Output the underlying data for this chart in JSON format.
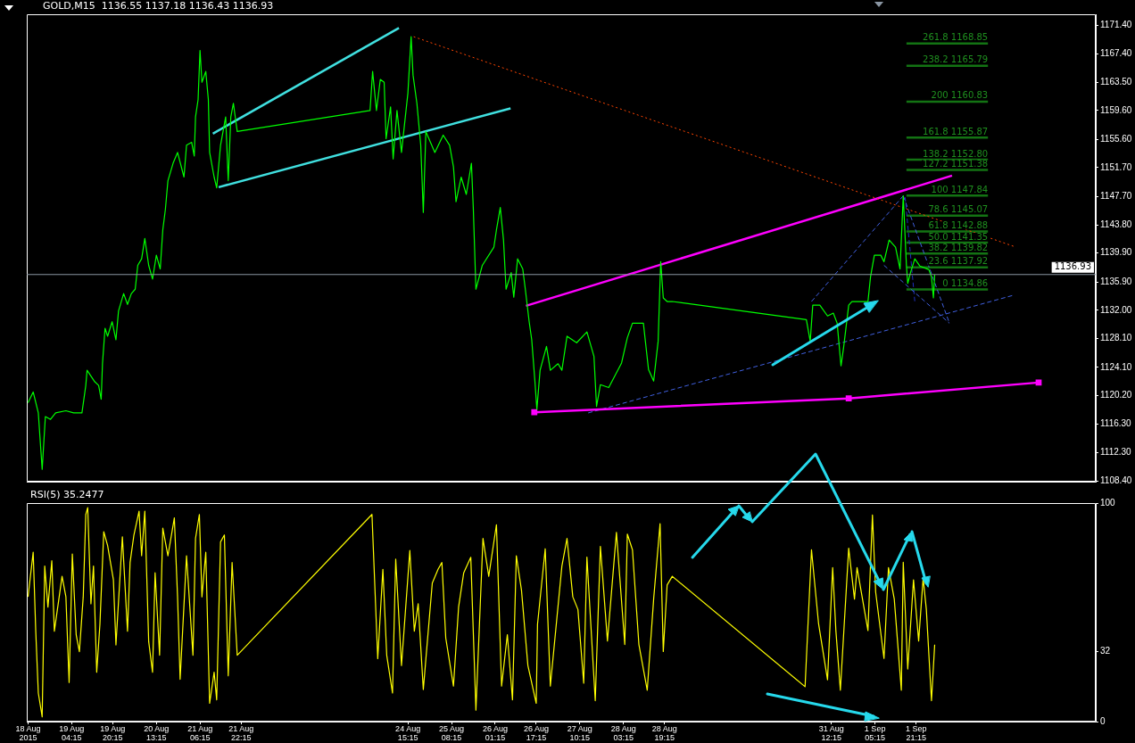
{
  "chart_data": [
    {
      "type": "line",
      "title": "GOLD,M15  1136.55 1137.18 1136.43 1136.93",
      "xlim": [
        "2015-08-18T10:45",
        "2015-09-04T19:15"
      ],
      "ylim": [
        1108.3,
        1172.9
      ],
      "tick_labels": "y",
      "legend": false,
      "marker": "none",
      "yticks": [
        {
          "value": 1108.4,
          "label": "1108.40"
        },
        {
          "value": 1112.3,
          "label": "1112.30"
        },
        {
          "value": 1116.3,
          "label": "1116.30"
        },
        {
          "value": 1120.2,
          "label": "1120.20"
        },
        {
          "value": 1124.1,
          "label": "1124.10"
        },
        {
          "value": 1128.1,
          "label": "1128.10"
        },
        {
          "value": 1132.0,
          "label": "1132.00"
        },
        {
          "value": 1135.9,
          "label": "1135.90"
        },
        {
          "value": 1139.9,
          "label": "1139.90"
        },
        {
          "value": 1143.8,
          "label": "1143.80"
        },
        {
          "value": 1147.7,
          "label": "1147.70"
        },
        {
          "value": 1151.7,
          "label": "1151.70"
        },
        {
          "value": 1155.6,
          "label": "1155.60"
        },
        {
          "value": 1159.6,
          "label": "1159.60"
        },
        {
          "value": 1163.5,
          "label": "1163.50"
        },
        {
          "value": 1167.4,
          "label": "1167.40"
        },
        {
          "value": 1171.4,
          "label": "1171.40"
        }
      ],
      "ref_lines": [
        {
          "axis": "y",
          "value": 1136.93,
          "label": "1136.93",
          "color": "#8a96a3"
        }
      ],
      "series": [
        {
          "color": "#00ff00",
          "x": [
            "2015-08-18T11:15",
            "2015-08-18T13:15",
            "2015-08-18T15:15",
            "2015-08-18T16:45",
            "2015-08-18T18:00",
            "2015-08-18T20:00",
            "2015-08-18T22:00",
            "2015-08-19T02:00",
            "2015-08-19T05:00",
            "2015-08-19T08:15",
            "2015-08-19T09:45",
            "2015-08-19T10:15",
            "2015-08-19T13:15",
            "2015-08-19T14:45",
            "2015-08-19T15:45",
            "2015-08-19T16:15",
            "2015-08-19T17:15",
            "2015-08-19T18:15",
            "2015-08-19T20:00",
            "2015-08-19T21:30",
            "2015-08-19T22:30",
            "2015-08-20T00:30",
            "2015-08-20T02:00",
            "2015-08-20T03:30",
            "2015-08-20T05:00",
            "2015-08-20T06:00",
            "2015-08-20T07:30",
            "2015-08-20T08:45",
            "2015-08-20T10:15",
            "2015-08-20T11:45",
            "2015-08-20T13:15",
            "2015-08-20T14:45",
            "2015-08-20T15:45",
            "2015-08-20T16:45",
            "2015-08-20T17:45",
            "2015-08-20T19:45",
            "2015-08-20T21:30",
            "2015-08-21T00:00",
            "2015-08-21T01:00",
            "2015-08-21T03:00",
            "2015-08-21T04:00",
            "2015-08-21T04:30",
            "2015-08-21T05:30",
            "2015-08-21T06:15",
            "2015-08-21T07:00",
            "2015-08-21T08:30",
            "2015-08-21T09:30",
            "2015-08-21T10:00",
            "2015-08-21T11:45",
            "2015-08-21T12:45",
            "2015-08-21T14:15",
            "2015-08-21T16:15",
            "2015-08-21T17:15",
            "2015-08-21T18:15",
            "2015-08-21T19:15",
            "2015-08-21T20:45",
            "2015-08-24T00:30",
            "2015-08-24T01:30",
            "2015-08-24T03:00",
            "2015-08-24T04:30",
            "2015-08-24T06:00",
            "2015-08-24T06:45",
            "2015-08-24T08:30",
            "2015-08-24T09:30",
            "2015-08-24T11:00",
            "2015-08-24T12:45",
            "2015-08-24T15:15",
            "2015-08-24T16:30",
            "2015-08-24T17:15",
            "2015-08-24T18:45",
            "2015-08-24T20:15",
            "2015-08-24T21:15",
            "2015-08-24T22:15",
            "2015-08-25T01:45",
            "2015-08-25T05:00",
            "2015-08-25T07:30",
            "2015-08-25T09:00",
            "2015-08-25T10:00",
            "2015-08-25T12:00",
            "2015-08-25T14:00",
            "2015-08-25T16:00",
            "2015-08-25T16:45",
            "2015-08-25T17:45",
            "2015-08-25T20:15",
            "2015-08-26T00:45",
            "2015-08-26T01:45",
            "2015-08-26T03:15",
            "2015-08-26T04:30",
            "2015-08-26T05:30",
            "2015-08-26T07:30",
            "2015-08-26T08:30",
            "2015-08-26T10:00",
            "2015-08-26T12:00",
            "2015-08-26T13:00",
            "2015-08-26T14:30",
            "2015-08-26T15:30",
            "2015-08-26T16:45",
            "2015-08-26T17:30",
            "2015-08-26T18:45",
            "2015-08-26T21:15",
            "2015-08-26T22:45",
            "2015-08-27T01:45",
            "2015-08-27T03:15",
            "2015-08-27T05:15",
            "2015-08-27T09:00",
            "2015-08-27T13:00",
            "2015-08-27T15:45",
            "2015-08-27T16:45",
            "2015-08-27T18:15",
            "2015-08-27T21:30",
            "2015-08-28T02:30",
            "2015-08-28T04:45",
            "2015-08-28T06:45",
            "2015-08-28T11:00",
            "2015-08-28T13:00",
            "2015-08-28T15:00",
            "2015-08-28T16:45",
            "2015-08-28T17:45",
            "2015-08-28T18:45",
            "2015-08-28T20:15",
            "2015-08-28T22:15",
            "2015-08-31T02:30",
            "2015-08-31T04:00",
            "2015-08-31T05:00",
            "2015-08-31T07:45",
            "2015-08-31T10:45",
            "2015-08-31T13:00",
            "2015-08-31T14:30",
            "2015-08-31T16:00",
            "2015-08-31T17:00",
            "2015-08-31T19:00",
            "2015-08-31T20:15",
            "2015-09-01T00:15",
            "2015-09-01T02:30",
            "2015-09-01T03:30",
            "2015-09-01T05:00",
            "2015-09-01T07:30",
            "2015-09-01T08:45",
            "2015-09-01T10:45",
            "2015-09-01T13:15",
            "2015-09-01T15:00",
            "2015-09-01T16:15",
            "2015-09-01T17:30",
            "2015-09-01T18:00",
            "2015-09-01T19:00",
            "2015-09-01T20:45",
            "2015-09-01T22:45",
            "2015-09-02T02:15",
            "2015-09-02T03:15",
            "2015-09-02T04:00",
            "2015-09-02T04:30"
          ],
          "values": [
            1119.2,
            1120.7,
            1117.8,
            1110.0,
            1117.3,
            1116.9,
            1117.8,
            1118.1,
            1117.8,
            1117.8,
            1121.6,
            1123.7,
            1122.1,
            1121.6,
            1119.7,
            1124.6,
            1129.5,
            1128.4,
            1130.4,
            1127.9,
            1131.9,
            1134.3,
            1132.8,
            1134.3,
            1134.9,
            1138.2,
            1139.1,
            1141.9,
            1138.2,
            1136.3,
            1139.6,
            1137.7,
            1143.1,
            1145.9,
            1149.9,
            1152.3,
            1153.8,
            1150.4,
            1154.8,
            1155.2,
            1153.3,
            1158.7,
            1161.1,
            1167.9,
            1163.5,
            1165.0,
            1161.1,
            1153.8,
            1150.4,
            1148.9,
            1154.8,
            1158.7,
            1149.9,
            1158.7,
            1160.6,
            1156.7,
            1159.6,
            1165.0,
            1159.6,
            1163.9,
            1163.5,
            1155.7,
            1160.1,
            1152.9,
            1159.6,
            1153.8,
            1162.0,
            1169.8,
            1164.5,
            1160.6,
            1154.8,
            1145.5,
            1156.7,
            1153.8,
            1156.2,
            1154.8,
            1151.8,
            1147.0,
            1150.4,
            1148.0,
            1152.3,
            1145.9,
            1134.9,
            1138.2,
            1140.7,
            1143.1,
            1146.2,
            1141.7,
            1134.9,
            1137.2,
            1133.8,
            1139.1,
            1137.7,
            1134.9,
            1130.4,
            1127.9,
            1122.1,
            1118.3,
            1123.7,
            1127.0,
            1123.7,
            1124.6,
            1123.7,
            1128.4,
            1127.5,
            1129.0,
            1125.6,
            1118.7,
            1121.7,
            1121.3,
            1124.7,
            1128.2,
            1130.2,
            1130.2,
            1123.8,
            1122.2,
            1127.7,
            1138.7,
            1133.7,
            1133.2,
            1133.2,
            1130.7,
            1127.7,
            1132.7,
            1132.7,
            1131.2,
            1131.6,
            1130.2,
            1124.3,
            1126.8,
            1132.7,
            1133.2,
            1133.2,
            1133.2,
            1136.6,
            1139.6,
            1139.6,
            1138.7,
            1141.7,
            1140.7,
            1137.7,
            1147.8,
            1138.1,
            1135.7,
            1137.1,
            1139.1,
            1138.1,
            1137.6,
            1136.6,
            1133.7,
            1136.9
          ]
        },
        {
          "color": "#40e0e0",
          "x": [
            "2015-08-21T11:15",
            "2015-08-24T11:45"
          ],
          "values": [
            1156.4,
            1171.0
          ]
        },
        {
          "color": "#40e0e0",
          "x": [
            "2015-08-21T13:30",
            "2015-08-26T07:15"
          ],
          "values": [
            1149.0,
            1159.9
          ]
        },
        {
          "color": "#ff4500",
          "line_style": "dotted",
          "x": [
            "2015-08-24T17:30",
            "2015-09-03T11:30"
          ],
          "values": [
            1169.8,
            1140.8
          ]
        },
        {
          "color": "#ff00ff",
          "x": [
            "2015-08-26T13:15",
            "2015-09-02T11:15"
          ],
          "values": [
            1132.6,
            1150.6
          ]
        },
        {
          "color": "#ff00ff",
          "marker": "square",
          "x": [
            "2015-08-26T16:30",
            "2015-08-31T19:00",
            "2015-09-03T21:00"
          ],
          "values": [
            1117.9,
            1119.8,
            1122.0
          ]
        },
        {
          "color": "#4060e0",
          "line_style": "dashed",
          "x": [
            "2015-08-27T13:30",
            "2015-09-03T11:30"
          ],
          "values": [
            1117.8,
            1134.1
          ]
        },
        {
          "color": "#4060e0",
          "line_style": "dashed",
          "x": [
            "2015-08-31T04:30",
            "2015-09-01T16:15"
          ],
          "values": [
            1133.2,
            1147.8
          ]
        },
        {
          "color": "#4060e0",
          "line_style": "dashed",
          "x": [
            "2015-09-01T16:15",
            "2015-09-02T10:15"
          ],
          "values": [
            1147.8,
            1130.2
          ]
        },
        {
          "color": "#4060e0",
          "line_style": "dashed",
          "x": [
            "2015-09-01T08:45",
            "2015-09-02T10:15"
          ],
          "values": [
            1138.2,
            1130.2
          ]
        },
        {
          "color": "#2030c0",
          "line_style": "dashed",
          "x": [
            "2015-09-01T17:00",
            "2015-09-01T20:45"
          ],
          "values": [
            1147.6,
            1133.2
          ]
        },
        {
          "color": "#137313",
          "x": [
            "2015-09-01T17:30",
            "2015-09-03T01:15"
          ],
          "values": [
            1168.85,
            1168.85
          ]
        },
        {
          "color": "#137313",
          "x": [
            "2015-09-01T17:30",
            "2015-09-03T01:15"
          ],
          "values": [
            1165.79,
            1165.79
          ]
        },
        {
          "color": "#137313",
          "x": [
            "2015-09-01T17:30",
            "2015-09-03T01:15"
          ],
          "values": [
            1160.83,
            1160.83
          ]
        },
        {
          "color": "#137313",
          "x": [
            "2015-09-01T17:30",
            "2015-09-03T01:15"
          ],
          "values": [
            1155.87,
            1155.87
          ]
        },
        {
          "color": "#137313",
          "x": [
            "2015-09-01T17:30",
            "2015-09-03T01:15"
          ],
          "values": [
            1152.8,
            1152.8
          ]
        },
        {
          "color": "#137313",
          "x": [
            "2015-09-01T17:30",
            "2015-09-03T01:15"
          ],
          "values": [
            1151.38,
            1151.38
          ]
        },
        {
          "color": "#137313",
          "x": [
            "2015-09-01T17:30",
            "2015-09-03T01:15"
          ],
          "values": [
            1147.84,
            1147.84
          ]
        },
        {
          "color": "#137313",
          "x": [
            "2015-09-01T17:30",
            "2015-09-03T01:15"
          ],
          "values": [
            1145.07,
            1145.07
          ]
        },
        {
          "color": "#137313",
          "x": [
            "2015-09-01T17:30",
            "2015-09-03T01:15"
          ],
          "values": [
            1142.88,
            1142.88
          ]
        },
        {
          "color": "#137313",
          "x": [
            "2015-09-01T17:30",
            "2015-09-03T01:15"
          ],
          "values": [
            1141.35,
            1141.35
          ]
        },
        {
          "color": "#137313",
          "x": [
            "2015-09-01T17:30",
            "2015-09-03T01:15"
          ],
          "values": [
            1139.82,
            1139.82
          ]
        },
        {
          "color": "#137313",
          "x": [
            "2015-09-01T17:30",
            "2015-09-03T01:15"
          ],
          "values": [
            1137.92,
            1137.92
          ]
        },
        {
          "color": "#137313",
          "x": [
            "2015-09-01T17:30",
            "2015-09-03T01:15"
          ],
          "values": [
            1134.86,
            1134.86
          ]
        }
      ],
      "annotations": [
        {
          "text": "261.8 1168.85",
          "x": "2015-09-03T01:15",
          "y": 1168.85
        },
        {
          "text": "238.2 1165.79",
          "x": "2015-09-03T01:15",
          "y": 1165.79
        },
        {
          "text": "200 1160.83",
          "x": "2015-09-03T01:15",
          "y": 1160.83
        },
        {
          "text": "161.8 1155.87",
          "x": "2015-09-03T01:15",
          "y": 1155.87
        },
        {
          "text": "138.2 1152.80",
          "x": "2015-09-03T01:15",
          "y": 1152.8
        },
        {
          "text": "127.2 1151.38",
          "x": "2015-09-03T01:15",
          "y": 1151.38
        },
        {
          "text": "100 1147.84",
          "x": "2015-09-03T01:15",
          "y": 1147.84
        },
        {
          "text": "78.6 1145.07",
          "x": "2015-09-03T01:15",
          "y": 1145.07
        },
        {
          "text": "61.8 1142.88",
          "x": "2015-09-03T01:15",
          "y": 1142.88
        },
        {
          "text": "50.0 1141.35",
          "x": "2015-09-03T01:15",
          "y": 1141.35
        },
        {
          "text": "38.2 1139.82",
          "x": "2015-09-03T01:15",
          "y": 1139.82
        },
        {
          "text": "23.6 1137.92",
          "x": "2015-09-03T01:15",
          "y": 1137.92
        },
        {
          "text": "0 1134.86",
          "x": "2015-09-03T01:15",
          "y": 1134.86
        }
      ]
    },
    {
      "type": "line",
      "title": "RSI(5) 35.2477",
      "xlim": [
        "2015-08-18T10:45",
        "2015-09-04T19:15"
      ],
      "ylim": [
        0,
        100
      ],
      "yticks": [
        0,
        32,
        100
      ],
      "legend": false,
      "marker": "none",
      "xticks": [
        {
          "value": "2015-08-18T11:15",
          "label": "18 Aug 2015"
        },
        {
          "value": "2015-08-19T04:15",
          "label": "19 Aug 04:15"
        },
        {
          "value": "2015-08-19T20:15",
          "label": "19 Aug 20:15"
        },
        {
          "value": "2015-08-20T13:15",
          "label": "20 Aug 13:15"
        },
        {
          "value": "2015-08-21T06:15",
          "label": "21 Aug 06:15"
        },
        {
          "value": "2015-08-21T22:15",
          "label": "21 Aug 22:15"
        },
        {
          "value": "2015-08-24T15:15",
          "label": "24 Aug 15:15"
        },
        {
          "value": "2015-08-25T08:15",
          "label": "25 Aug 08:15"
        },
        {
          "value": "2015-08-26T01:15",
          "label": "26 Aug 01:15"
        },
        {
          "value": "2015-08-26T17:15",
          "label": "26 Aug 17:15"
        },
        {
          "value": "2015-08-27T10:15",
          "label": "27 Aug 10:15"
        },
        {
          "value": "2015-08-28T03:15",
          "label": "28 Aug 03:15"
        },
        {
          "value": "2015-08-28T19:15",
          "label": "28 Aug 19:15"
        },
        {
          "value": "2015-08-31T12:15",
          "label": "31 Aug 12:15"
        },
        {
          "value": "2015-09-01T05:15",
          "label": "1 Sep 05:15"
        },
        {
          "value": "2015-09-01T21:15",
          "label": "1 Sep 21:15"
        }
      ],
      "series": [
        {
          "color": "#ffff00",
          "x": [
            "2015-08-18T11:15",
            "2015-08-18T13:15",
            "2015-08-18T14:15",
            "2015-08-18T15:15",
            "2015-08-18T16:45",
            "2015-08-18T17:45",
            "2015-08-18T19:00",
            "2015-08-18T20:30",
            "2015-08-18T21:30",
            "2015-08-19T00:30",
            "2015-08-19T02:00",
            "2015-08-19T03:15",
            "2015-08-19T04:30",
            "2015-08-19T06:00",
            "2015-08-19T07:15",
            "2015-08-19T08:45",
            "2015-08-19T09:45",
            "2015-08-19T10:30",
            "2015-08-19T11:45",
            "2015-08-19T12:45",
            "2015-08-19T14:00",
            "2015-08-19T15:15",
            "2015-08-19T16:45",
            "2015-08-19T18:15",
            "2015-08-19T20:30",
            "2015-08-19T21:30",
            "2015-08-20T00:00",
            "2015-08-20T02:00",
            "2015-08-20T03:00",
            "2015-08-20T04:30",
            "2015-08-20T06:30",
            "2015-08-20T07:30",
            "2015-08-20T08:45",
            "2015-08-20T10:15",
            "2015-08-20T11:45",
            "2015-08-20T12:45",
            "2015-08-20T14:30",
            "2015-08-20T15:45",
            "2015-08-20T17:45",
            "2015-08-20T20:15",
            "2015-08-20T21:30",
            "2015-08-20T22:30",
            "2015-08-21T01:00",
            "2015-08-21T03:30",
            "2015-08-21T04:30",
            "2015-08-21T06:00",
            "2015-08-21T07:00",
            "2015-08-21T08:30",
            "2015-08-21T10:00",
            "2015-08-21T11:45",
            "2015-08-21T12:45",
            "2015-08-21T14:15",
            "2015-08-21T15:45",
            "2015-08-21T17:15",
            "2015-08-21T18:45",
            "2015-08-21T20:45",
            "2015-08-24T01:15",
            "2015-08-24T03:30",
            "2015-08-24T05:30",
            "2015-08-24T07:00",
            "2015-08-24T09:15",
            "2015-08-24T10:30",
            "2015-08-24T12:45",
            "2015-08-24T16:00",
            "2015-08-24T17:45",
            "2015-08-24T19:15",
            "2015-08-24T21:15",
            "2015-08-25T00:45",
            "2015-08-25T03:00",
            "2015-08-25T04:30",
            "2015-08-25T06:00",
            "2015-08-25T09:00",
            "2015-08-25T11:00",
            "2015-08-25T13:00",
            "2015-08-25T15:45",
            "2015-08-25T17:45",
            "2015-08-25T20:30",
            "2015-08-25T22:45",
            "2015-08-26T01:45",
            "2015-08-26T03:45",
            "2015-08-26T06:00",
            "2015-08-26T08:00",
            "2015-08-26T09:30",
            "2015-08-26T11:30",
            "2015-08-26T14:00",
            "2015-08-26T17:15",
            "2015-08-26T17:45",
            "2015-08-26T20:45",
            "2015-08-26T22:45",
            "2015-08-27T03:15",
            "2015-08-27T05:15",
            "2015-08-27T07:30",
            "2015-08-27T09:30",
            "2015-08-27T11:45",
            "2015-08-27T13:00",
            "2015-08-27T16:15",
            "2015-08-27T18:15",
            "2015-08-27T21:00",
            "2015-08-28T00:30",
            "2015-08-28T03:45",
            "2015-08-28T04:45",
            "2015-08-28T06:45",
            "2015-08-28T09:15",
            "2015-08-28T12:30",
            "2015-08-28T15:00",
            "2015-08-28T17:30",
            "2015-08-28T18:45",
            "2015-08-28T20:15",
            "2015-08-28T22:15",
            "2015-08-31T02:00",
            "2015-08-31T04:30",
            "2015-08-31T07:15",
            "2015-08-31T10:45",
            "2015-08-31T12:45",
            "2015-08-31T14:00",
            "2015-08-31T15:45",
            "2015-08-31T19:00",
            "2015-08-31T21:15",
            "2015-08-31T22:15",
            "2015-09-01T02:30",
            "2015-09-01T04:15",
            "2015-09-01T05:30",
            "2015-09-01T08:45",
            "2015-09-01T10:30",
            "2015-09-01T12:45",
            "2015-09-01T15:30",
            "2015-09-01T16:15",
            "2015-09-01T18:00",
            "2015-09-01T20:15",
            "2015-09-01T22:15",
            "2015-09-02T00:00",
            "2015-09-02T01:15",
            "2015-09-02T03:15",
            "2015-09-02T04:30"
          ],
          "values": [
            57.1,
            77.5,
            41.4,
            13.1,
            2.2,
            71.2,
            52.4,
            73.6,
            41.4,
            66.5,
            57.1,
            17.9,
            76.7,
            39.8,
            32.0,
            57.1,
            94.8,
            97.9,
            53.9,
            71.2,
            22.6,
            44.5,
            86.9,
            80.6,
            65.0,
            35.1,
            84.6,
            41.4,
            72.8,
            85.4,
            96.3,
            75.9,
            96.3,
            36.7,
            22.6,
            68.1,
            30.4,
            88.5,
            75.9,
            93.2,
            57.1,
            19.4,
            75.9,
            30.4,
            83.8,
            94.8,
            57.1,
            77.5,
            8.4,
            22.6,
            10.0,
            82.2,
            85.4,
            21.0,
            72.8,
            30.4,
            94.8,
            28.8,
            69.7,
            30.4,
            13.1,
            74.4,
            25.7,
            78.3,
            41.4,
            54.0,
            14.7,
            63.4,
            69.7,
            72.8,
            38.3,
            16.3,
            52.4,
            68.1,
            75.2,
            5.3,
            83.8,
            66.5,
            90.1,
            16.3,
            39.8,
            10.0,
            75.9,
            60.2,
            25.7,
            8.4,
            44.5,
            79.1,
            16.3,
            71.2,
            83.8,
            57.1,
            51.3,
            17.6,
            75.3,
            9.6,
            80.2,
            36.9,
            86.6,
            35.3,
            85.8,
            78.6,
            35.3,
            14.4,
            56.1,
            90.6,
            32.1,
            62.5,
            66.5,
            16.0,
            78.6,
            44.9,
            19.2,
            70.5,
            41.7,
            14.4,
            79.4,
            56.1,
            70.5,
            41.7,
            94.6,
            59.3,
            28.9,
            70.5,
            56.1,
            14.4,
            72.9,
            24.1,
            64.9,
            36.9,
            65.7,
            51.3,
            9.6,
            35.2
          ]
        }
      ]
    }
  ]
}
